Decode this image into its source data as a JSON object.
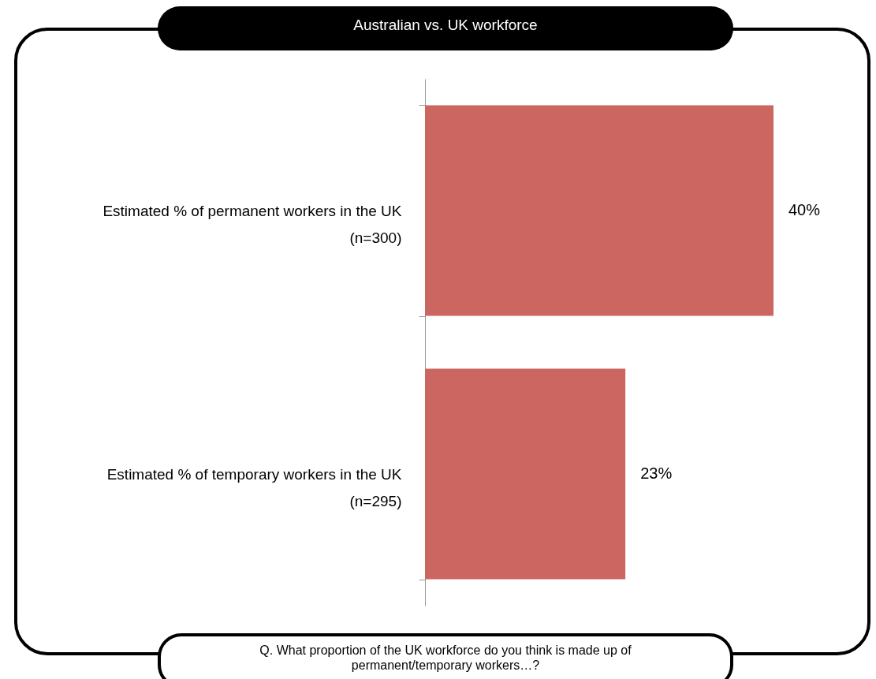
{
  "chart_data": {
    "type": "bar",
    "orientation": "horizontal",
    "title": "Australian vs. UK workforce",
    "categories": [
      "Estimated % of permanent workers in the UK\n(n=300)",
      "Estimated % of temporary workers in the UK\n(n=295)"
    ],
    "values": [
      40,
      23
    ],
    "color": "#cc6660",
    "value_labels": [
      "40%",
      "23%"
    ],
    "grid": false,
    "annotations": [
      "Q. What proportion of the UK workforce do you think is made up of permanent/temporary workers…?"
    ]
  }
}
